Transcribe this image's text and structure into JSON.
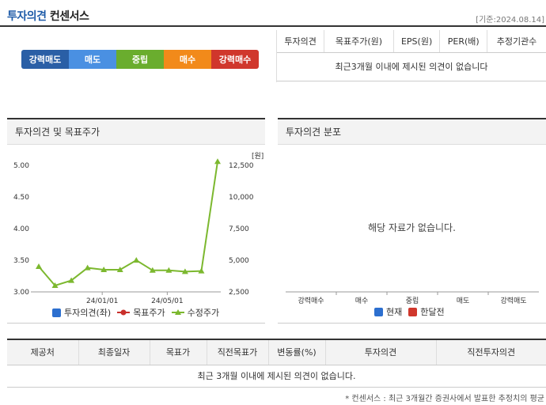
{
  "header": {
    "title_blue": "투자의견",
    "title_dark": "컨센서스",
    "date": "[기준:2024.08.14]"
  },
  "opinion_bar": [
    {
      "label": "강력매도",
      "color": "#2a5fa6"
    },
    {
      "label": "매도",
      "color": "#4a90e2"
    },
    {
      "label": "중립",
      "color": "#6aad2e"
    },
    {
      "label": "매수",
      "color": "#f28a1a"
    },
    {
      "label": "강력매수",
      "color": "#d0372c"
    }
  ],
  "consensus_table": {
    "headers": [
      "투자의견",
      "목표주가(원)",
      "EPS(원)",
      "PER(배)",
      "추정기관수"
    ],
    "empty_msg": "최근3개월 이내에 제시된 의견이 없습니다"
  },
  "chart_panel": {
    "title": "투자의견 및 목표주가",
    "unit": "[원]",
    "legend": [
      {
        "label": "투자의견(좌)",
        "color": "#2c6fcf",
        "icon": "square-icon"
      },
      {
        "label": "목표주가",
        "color": "#c9302c",
        "icon": "line-dot-icon"
      },
      {
        "label": "수정주가",
        "color": "#7cb82f",
        "icon": "line-triangle-icon"
      }
    ]
  },
  "chart_data": {
    "type": "line",
    "title": "투자의견 및 목표주가",
    "left_axis": {
      "ticks": [
        "5.00",
        "4.50",
        "4.00",
        "3.50",
        "3.00"
      ],
      "range": [
        3.0,
        5.0
      ]
    },
    "right_axis": {
      "ticks": [
        "12,500",
        "10,000",
        "7,500",
        "5,000",
        "2,500"
      ],
      "range": [
        2500,
        12500
      ],
      "unit": "[원]"
    },
    "x_ticks": [
      "24/01/01",
      "24/05/01"
    ],
    "grid": false,
    "series": [
      {
        "name": "수정주가",
        "axis": "right",
        "color": "#7cb82f",
        "values": [
          4500,
          3000,
          3400,
          4400,
          4250,
          4250,
          5000,
          4200,
          4200,
          4100,
          4150,
          12800
        ]
      }
    ]
  },
  "dist_panel": {
    "title": "투자의견 분포",
    "empty_msg": "해당 자료가 없습니다.",
    "categories": [
      "강력매수",
      "매수",
      "중립",
      "매도",
      "강력매도"
    ],
    "legend": [
      {
        "label": "현재",
        "color": "#2c6fcf"
      },
      {
        "label": "한달전",
        "color": "#d0372c"
      }
    ]
  },
  "bottom_table": {
    "headers": [
      "제공처",
      "최종일자",
      "목표가",
      "직전목표가",
      "변동률(%)",
      "투자의견",
      "직전투자의견"
    ],
    "empty_msg": "최근 3개월 이내에 제시된 의견이 없습니다."
  },
  "footnote": "* 컨센서스 : 최근 3개월간 증권사에서 발표한 추정치의 평균"
}
